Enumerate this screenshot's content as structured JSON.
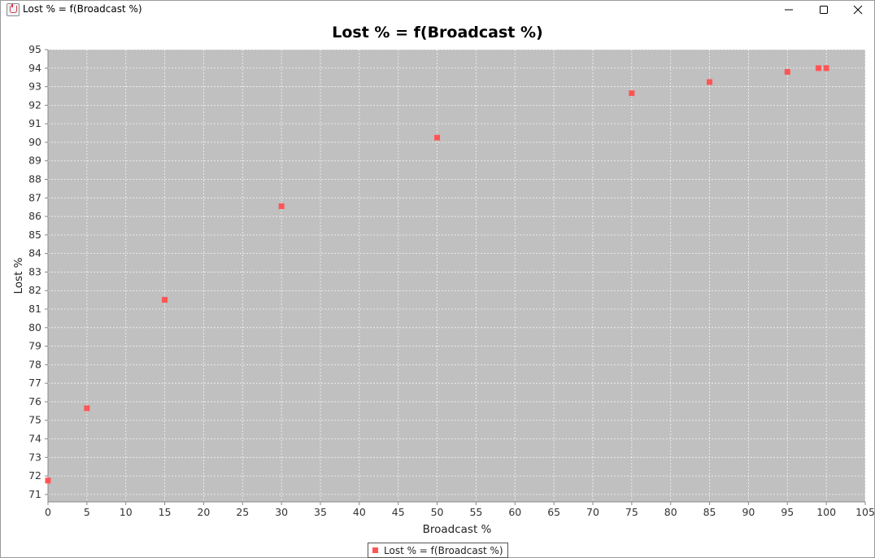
{
  "window": {
    "title": "Lost % = f(Broadcast %)"
  },
  "titlebar_buttons": {
    "minimize_icon": "minimize-icon",
    "maximize_icon": "maximize-icon",
    "close_icon": "close-icon"
  },
  "chart_data": {
    "type": "scatter",
    "title": "Lost % = f(Broadcast %)",
    "xlabel": "Broadcast %",
    "ylabel": "Lost %",
    "xlim": [
      0,
      105
    ],
    "ylim": [
      70.6,
      95
    ],
    "x_ticks": [
      0,
      5,
      10,
      15,
      20,
      25,
      30,
      35,
      40,
      45,
      50,
      55,
      60,
      65,
      70,
      75,
      80,
      85,
      90,
      95,
      100,
      105
    ],
    "y_ticks": [
      71,
      72,
      73,
      74,
      75,
      76,
      77,
      78,
      79,
      80,
      81,
      82,
      83,
      84,
      85,
      86,
      87,
      88,
      89,
      90,
      91,
      92,
      93,
      94,
      95
    ],
    "grid": true,
    "legend_position": "bottom-center",
    "series": [
      {
        "name": "Lost % = f(Broadcast %)",
        "color": "#ff5555",
        "points": [
          {
            "x": 0,
            "y": 71.75
          },
          {
            "x": 5,
            "y": 75.65
          },
          {
            "x": 15,
            "y": 81.5
          },
          {
            "x": 30,
            "y": 86.55
          },
          {
            "x": 50,
            "y": 90.25
          },
          {
            "x": 75,
            "y": 92.65
          },
          {
            "x": 85,
            "y": 93.25
          },
          {
            "x": 95,
            "y": 93.8
          },
          {
            "x": 99,
            "y": 94.0
          },
          {
            "x": 100,
            "y": 94.0
          }
        ]
      }
    ],
    "colors": {
      "plot_background": "#c0c0c0",
      "gridline": "#ffffff",
      "axis": "#888888"
    }
  }
}
